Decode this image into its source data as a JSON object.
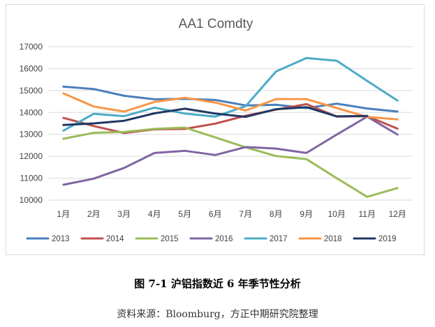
{
  "chart_data": {
    "type": "line",
    "title": "AA1 Comdty",
    "categories": [
      "1月",
      "2月",
      "3月",
      "4月",
      "5月",
      "6月",
      "7月",
      "8月",
      "9月",
      "10月",
      "11月",
      "12月"
    ],
    "ylim": [
      10000,
      17000
    ],
    "yticks": [
      10000,
      11000,
      12000,
      13000,
      14000,
      15000,
      16000,
      17000
    ],
    "grid": true,
    "legend": "bottom",
    "series": [
      {
        "name": "2013",
        "color": "#4A7EBB",
        "values": [
          15180,
          15070,
          14760,
          14600,
          14620,
          14570,
          14320,
          14350,
          14200,
          14400,
          14180,
          14040
        ]
      },
      {
        "name": "2014",
        "color": "#C0504D",
        "values": [
          13750,
          13380,
          13060,
          13230,
          13250,
          13490,
          13850,
          14130,
          14380,
          13810,
          13830,
          13260
        ]
      },
      {
        "name": "2015",
        "color": "#9BBB59",
        "values": [
          12800,
          13070,
          13110,
          13250,
          13310,
          12860,
          12410,
          12010,
          11870,
          11000,
          10150,
          10550
        ]
      },
      {
        "name": "2016",
        "color": "#8064A2",
        "values": [
          10700,
          10980,
          11470,
          12150,
          12250,
          12060,
          12420,
          12350,
          12150,
          12990,
          13810,
          12990
        ]
      },
      {
        "name": "2017",
        "color": "#4BACC6",
        "values": [
          13170,
          13940,
          13830,
          14220,
          13950,
          13810,
          14290,
          15870,
          16480,
          16360,
          15440,
          14540
        ]
      },
      {
        "name": "2018",
        "color": "#F79646",
        "values": [
          14870,
          14270,
          14040,
          14480,
          14670,
          14450,
          14090,
          14610,
          14610,
          14200,
          13800,
          13680
        ]
      },
      {
        "name": "2019",
        "color": "#1F3864",
        "values": [
          13430,
          13500,
          13620,
          13960,
          14170,
          13950,
          13800,
          14150,
          14240,
          13820,
          13840,
          null
        ]
      }
    ]
  },
  "caption": "图 7-1  沪铝指数近 6 年季节性分析",
  "source": "资料来源：Bloomburg，方正中期研究院整理"
}
